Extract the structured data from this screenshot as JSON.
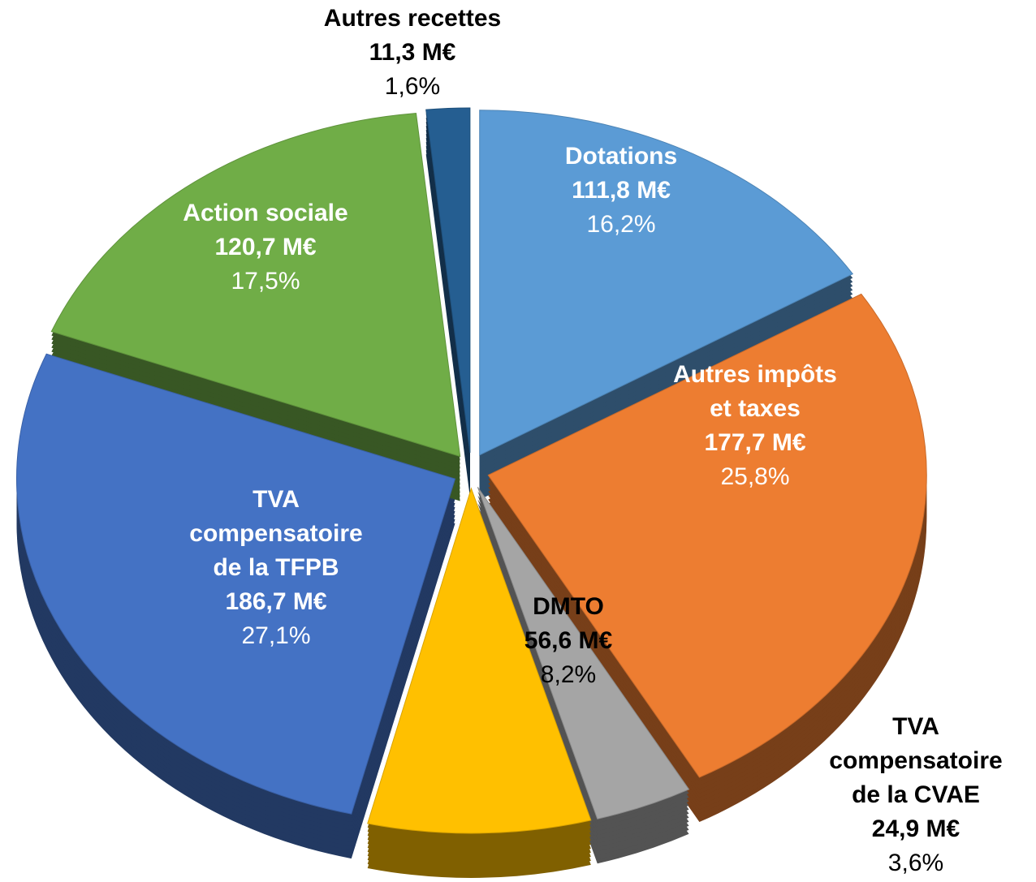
{
  "chart_data": {
    "type": "pie",
    "categories": [
      "Dotations",
      "Autres impôts et taxes",
      "TVA compensatoire de la CVAE",
      "DMTO",
      "TVA compensatoire de la TFPB",
      "Action sociale",
      "Autres recettes"
    ],
    "values": [
      16.2,
      25.8,
      3.6,
      8.2,
      27.1,
      17.5,
      1.6
    ],
    "value_labels": [
      "16,2%",
      "25,8%",
      "3,6%",
      "8,2%",
      "27,1%",
      "17,5%",
      "1,6%"
    ],
    "amounts": [
      111.8,
      177.7,
      24.9,
      56.6,
      186.7,
      120.7,
      11.3
    ],
    "amount_labels": [
      "111,8 M€",
      "177,7 M€",
      "24,9 M€",
      "56,6 M€",
      "186,7 M€",
      "120,7 M€",
      "11,3 M€"
    ],
    "colors": [
      "#5b9bd5",
      "#ed7d31",
      "#a5a5a5",
      "#ffc000",
      "#4472c4",
      "#70ad47",
      "#255e91"
    ],
    "label_colors": [
      "#ffffff",
      "#ffffff",
      "#000000",
      "#000000",
      "#ffffff",
      "#ffffff",
      "#000000"
    ]
  }
}
